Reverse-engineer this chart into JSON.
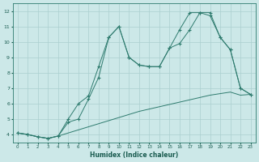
{
  "title": "",
  "xlabel": "Humidex (Indice chaleur)",
  "bg_color": "#cce8e8",
  "line_color": "#2e7b6e",
  "grid_color": "#aacfcf",
  "xlim": [
    -0.5,
    23.5
  ],
  "ylim": [
    3.5,
    12.5
  ],
  "xticks": [
    0,
    1,
    2,
    3,
    4,
    5,
    6,
    7,
    8,
    9,
    10,
    11,
    12,
    13,
    14,
    15,
    16,
    17,
    18,
    19,
    20,
    21,
    22,
    23
  ],
  "yticks": [
    4,
    5,
    6,
    7,
    8,
    9,
    10,
    11,
    12
  ],
  "line1_x": [
    0,
    1,
    2,
    3,
    4,
    5,
    6,
    7,
    8,
    9,
    10,
    11,
    12,
    13,
    14,
    15,
    16,
    17,
    18,
    19,
    20,
    21,
    22,
    23
  ],
  "line1_y": [
    4.1,
    4.0,
    3.85,
    3.75,
    3.9,
    4.1,
    4.3,
    4.5,
    4.7,
    4.9,
    5.1,
    5.3,
    5.5,
    5.65,
    5.8,
    5.95,
    6.1,
    6.25,
    6.4,
    6.55,
    6.65,
    6.75,
    6.55,
    6.6
  ],
  "line2_x": [
    0,
    1,
    2,
    3,
    4,
    5,
    6,
    7,
    8,
    9,
    10,
    11,
    12,
    13,
    14,
    15,
    16,
    17,
    18,
    19,
    20,
    21,
    22,
    23
  ],
  "line2_y": [
    4.1,
    4.0,
    3.85,
    3.75,
    3.9,
    4.8,
    5.0,
    6.3,
    7.7,
    10.3,
    11.0,
    9.0,
    8.5,
    8.4,
    8.4,
    9.6,
    9.9,
    10.8,
    11.9,
    11.9,
    10.3,
    9.5,
    7.0,
    6.6
  ],
  "line3_x": [
    0,
    1,
    2,
    3,
    4,
    5,
    6,
    7,
    8,
    9,
    10,
    11,
    12,
    13,
    14,
    15,
    16,
    17,
    18,
    19,
    20,
    21,
    22,
    23
  ],
  "line3_y": [
    4.1,
    4.0,
    3.85,
    3.75,
    3.9,
    5.0,
    6.0,
    6.5,
    8.4,
    10.3,
    11.0,
    9.0,
    8.5,
    8.4,
    8.4,
    9.6,
    10.8,
    11.9,
    11.9,
    11.7,
    10.3,
    9.5,
    7.0,
    6.6
  ]
}
